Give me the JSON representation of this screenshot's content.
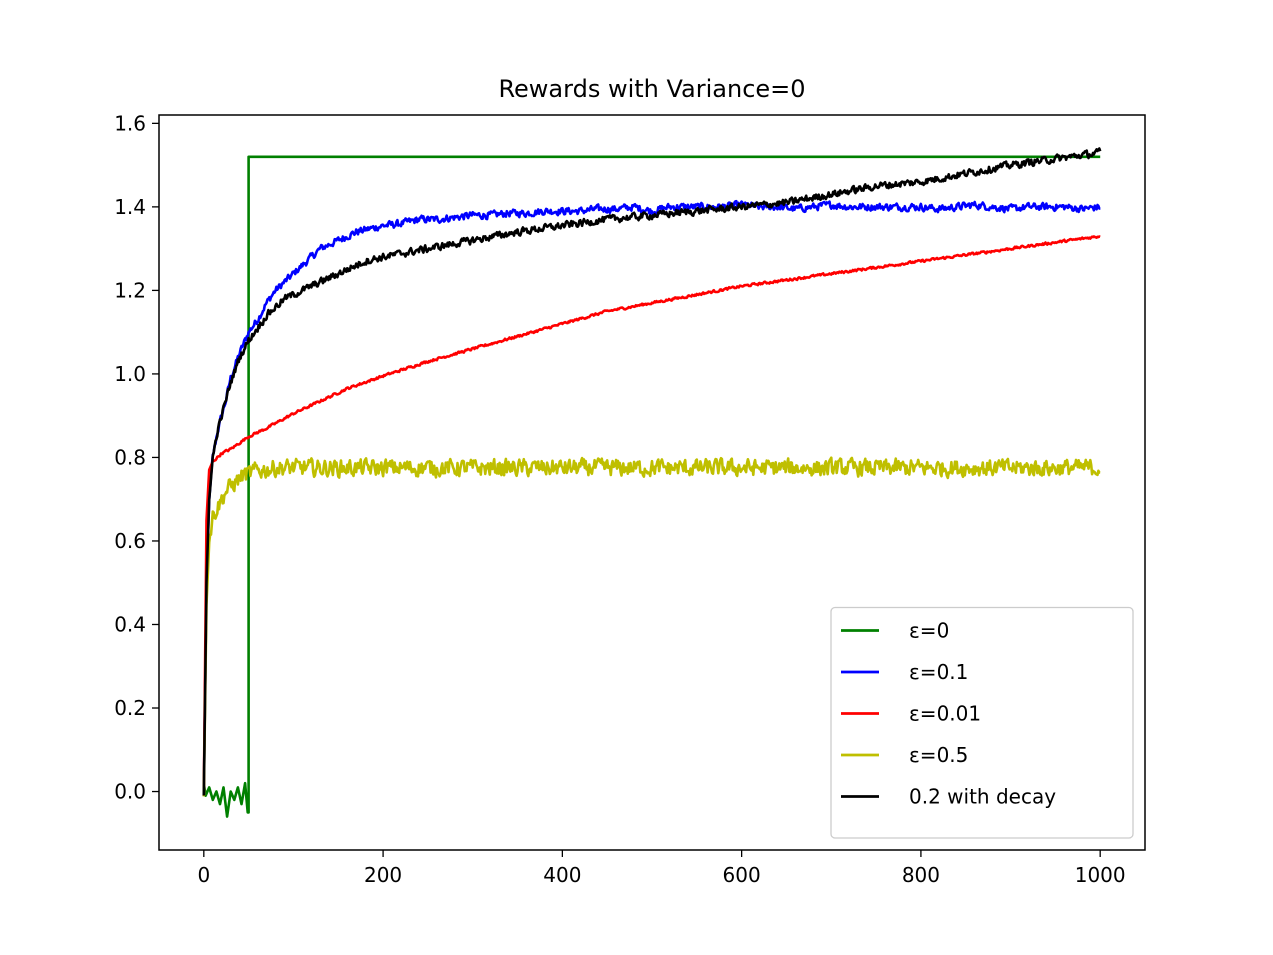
{
  "chart_data": {
    "type": "line",
    "title": "Rewards with Variance=0",
    "xlabel": "",
    "ylabel": "",
    "xlim": [
      -50,
      1050
    ],
    "ylim": [
      -0.14,
      1.62
    ],
    "xticks": [
      0,
      200,
      400,
      600,
      800,
      1000
    ],
    "yticks": [
      0.0,
      0.2,
      0.4,
      0.6,
      0.8,
      1.0,
      1.2,
      1.4,
      1.6
    ],
    "xtick_labels": [
      "0",
      "200",
      "400",
      "600",
      "800",
      "1000"
    ],
    "ytick_labels": [
      "0.0",
      "0.2",
      "0.4",
      "0.6",
      "0.8",
      "1.0",
      "1.2",
      "1.4",
      "1.6"
    ],
    "grid": false,
    "legend_position": "lower-right",
    "series": [
      {
        "name": "ε=0",
        "color": "#008000",
        "x": [
          0,
          2,
          6,
          10,
          14,
          18,
          22,
          26,
          30,
          34,
          38,
          42,
          46,
          49,
          50,
          50,
          1000
        ],
        "y": [
          0.02,
          -0.01,
          0.01,
          -0.02,
          0.0,
          -0.03,
          0.01,
          -0.06,
          0.0,
          -0.02,
          0.01,
          -0.03,
          0.02,
          -0.05,
          -0.05,
          1.52,
          1.52
        ]
      },
      {
        "name": "ε=0.1",
        "color": "#0000ff",
        "x": [
          0,
          3,
          6,
          10,
          15,
          20,
          25,
          30,
          40,
          50,
          60,
          70,
          80,
          90,
          100,
          110,
          120,
          130,
          140,
          150,
          160,
          170,
          180,
          190,
          200,
          220,
          240,
          260,
          280,
          300,
          320,
          340,
          360,
          380,
          400,
          420,
          440,
          460,
          480,
          500,
          520,
          540,
          560,
          580,
          600,
          620,
          640,
          660,
          680,
          700,
          720,
          740,
          760,
          780,
          800,
          820,
          840,
          860,
          880,
          900,
          920,
          940,
          960,
          980,
          1000
        ],
        "y": [
          -0.01,
          0.5,
          0.7,
          0.8,
          0.86,
          0.9,
          0.94,
          0.99,
          1.05,
          1.1,
          1.13,
          1.17,
          1.2,
          1.22,
          1.24,
          1.26,
          1.28,
          1.3,
          1.31,
          1.32,
          1.33,
          1.34,
          1.345,
          1.35,
          1.355,
          1.36,
          1.37,
          1.37,
          1.375,
          1.38,
          1.38,
          1.385,
          1.385,
          1.39,
          1.39,
          1.39,
          1.395,
          1.395,
          1.4,
          1.39,
          1.4,
          1.4,
          1.4,
          1.4,
          1.405,
          1.4,
          1.4,
          1.395,
          1.4,
          1.405,
          1.4,
          1.4,
          1.4,
          1.4,
          1.4,
          1.395,
          1.4,
          1.405,
          1.4,
          1.395,
          1.4,
          1.4,
          1.4,
          1.395,
          1.4
        ]
      },
      {
        "name": "ε=0.01",
        "color": "#ff0000",
        "x": [
          0,
          3,
          6,
          10,
          15,
          20,
          30,
          50,
          70,
          100,
          130,
          160,
          200,
          250,
          300,
          350,
          400,
          450,
          500,
          550,
          600,
          650,
          700,
          750,
          800,
          850,
          900,
          950,
          1000
        ],
        "y": [
          -0.01,
          0.65,
          0.77,
          0.79,
          0.8,
          0.81,
          0.82,
          0.85,
          0.87,
          0.905,
          0.935,
          0.965,
          0.995,
          1.03,
          1.06,
          1.09,
          1.12,
          1.15,
          1.17,
          1.19,
          1.21,
          1.225,
          1.24,
          1.255,
          1.27,
          1.285,
          1.3,
          1.315,
          1.33
        ]
      },
      {
        "name": "ε=0.5",
        "color": "#bfbf00",
        "x": [
          0,
          3,
          6,
          10,
          15,
          20,
          25,
          30,
          35,
          40,
          45,
          50,
          60,
          70,
          80,
          100,
          150,
          200,
          300,
          400,
          500,
          600,
          700,
          800,
          900,
          1000
        ],
        "y": [
          -0.01,
          0.45,
          0.6,
          0.66,
          0.68,
          0.7,
          0.72,
          0.73,
          0.74,
          0.75,
          0.76,
          0.76,
          0.77,
          0.77,
          0.775,
          0.775,
          0.775,
          0.775,
          0.775,
          0.775,
          0.775,
          0.775,
          0.775,
          0.775,
          0.775,
          0.775
        ]
      },
      {
        "name": "0.2 with decay",
        "color": "#000000",
        "x": [
          0,
          3,
          6,
          10,
          15,
          20,
          25,
          30,
          40,
          50,
          60,
          70,
          80,
          90,
          100,
          120,
          140,
          160,
          180,
          200,
          250,
          300,
          350,
          400,
          450,
          500,
          550,
          600,
          650,
          700,
          750,
          800,
          850,
          900,
          950,
          1000
        ],
        "y": [
          -0.01,
          0.5,
          0.7,
          0.8,
          0.86,
          0.9,
          0.94,
          0.98,
          1.04,
          1.08,
          1.11,
          1.14,
          1.16,
          1.18,
          1.19,
          1.21,
          1.23,
          1.25,
          1.27,
          1.28,
          1.3,
          1.32,
          1.34,
          1.355,
          1.37,
          1.38,
          1.39,
          1.4,
          1.41,
          1.43,
          1.45,
          1.46,
          1.48,
          1.5,
          1.515,
          1.53
        ]
      }
    ]
  }
}
